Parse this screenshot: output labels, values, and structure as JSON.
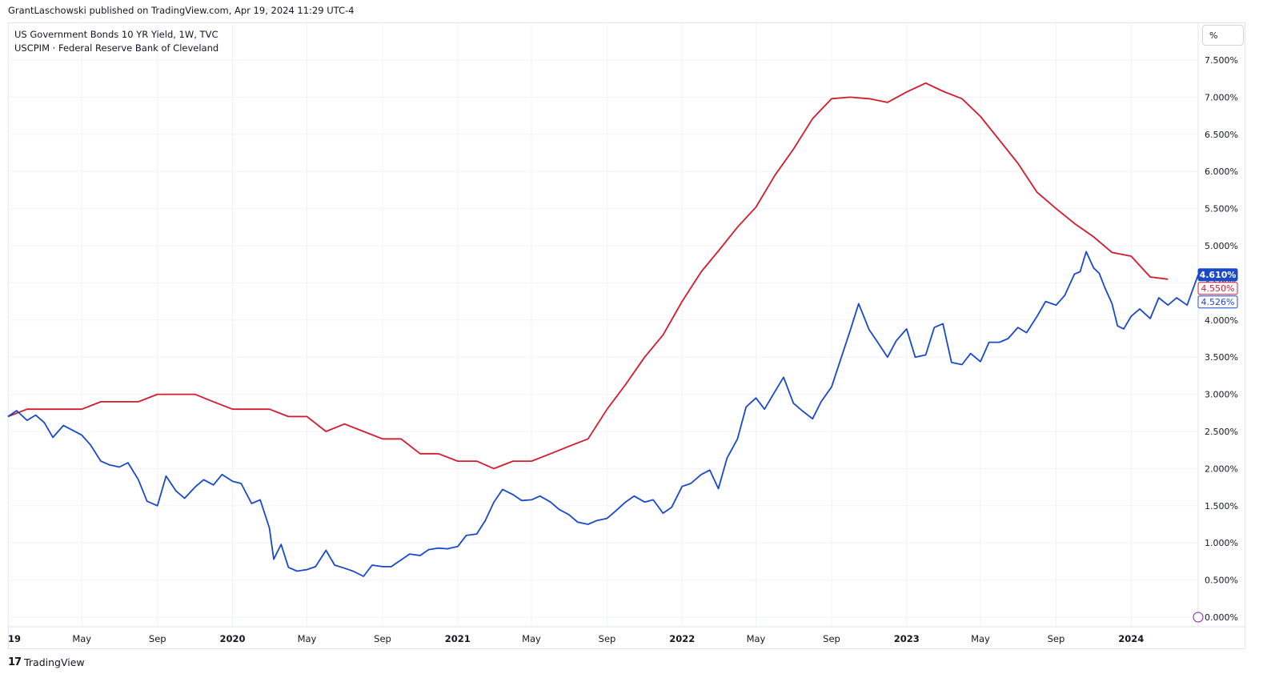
{
  "publisher": "GrantLaschowski published on TradingView.com, Apr 19, 2024 11:29 UTC-4",
  "legend": {
    "line1": "US Government Bonds 10 YR Yield, 1W, TVC",
    "line2": "USCPIM · Federal Reserve Bank of Cleveland"
  },
  "unit_button": "%",
  "brand": "TradingView",
  "colors": {
    "blue": "#1848cc",
    "red": "#d6192b",
    "grid": "#f0f3fa"
  },
  "chart_data": {
    "type": "line",
    "ylim": [
      0,
      7.5
    ],
    "xlim": [
      "2019-01-01",
      "2024-04-19"
    ],
    "y_ticks": [
      {
        "value": 7.5,
        "label": "7.500%"
      },
      {
        "value": 7.0,
        "label": "7.000%"
      },
      {
        "value": 6.5,
        "label": "6.500%"
      },
      {
        "value": 6.0,
        "label": "6.000%"
      },
      {
        "value": 5.5,
        "label": "5.500%"
      },
      {
        "value": 5.0,
        "label": "5.000%"
      },
      {
        "value": 4.5,
        "label": "4.500%"
      },
      {
        "value": 4.0,
        "label": "4.000%"
      },
      {
        "value": 3.5,
        "label": "3.500%"
      },
      {
        "value": 3.0,
        "label": "3.000%"
      },
      {
        "value": 2.5,
        "label": "2.500%"
      },
      {
        "value": 2.0,
        "label": "2.000%"
      },
      {
        "value": 1.5,
        "label": "1.500%"
      },
      {
        "value": 1.0,
        "label": "1.000%"
      },
      {
        "value": 0.5,
        "label": "0.500%"
      },
      {
        "value": 0.0,
        "label": "0.000%"
      }
    ],
    "x_ticks": [
      {
        "date": "2019-01-01",
        "label": "19",
        "major": true
      },
      {
        "date": "2019-05-01",
        "label": "May",
        "major": false
      },
      {
        "date": "2019-09-01",
        "label": "Sep",
        "major": false
      },
      {
        "date": "2020-01-01",
        "label": "2020",
        "major": true
      },
      {
        "date": "2020-05-01",
        "label": "May",
        "major": false
      },
      {
        "date": "2020-09-01",
        "label": "Sep",
        "major": false
      },
      {
        "date": "2021-01-01",
        "label": "2021",
        "major": true
      },
      {
        "date": "2021-05-01",
        "label": "May",
        "major": false
      },
      {
        "date": "2021-09-01",
        "label": "Sep",
        "major": false
      },
      {
        "date": "2022-01-01",
        "label": "2022",
        "major": true
      },
      {
        "date": "2022-05-01",
        "label": "May",
        "major": false
      },
      {
        "date": "2022-09-01",
        "label": "Sep",
        "major": false
      },
      {
        "date": "2023-01-01",
        "label": "2023",
        "major": true
      },
      {
        "date": "2023-05-01",
        "label": "May",
        "major": false
      },
      {
        "date": "2023-09-01",
        "label": "Sep",
        "major": false
      },
      {
        "date": "2024-01-01",
        "label": "2024",
        "major": true
      }
    ],
    "series": [
      {
        "color": "#d6192b",
        "last_label": "4.550%",
        "points": [
          [
            "2019-01-01",
            2.7
          ],
          [
            "2019-02-01",
            2.8
          ],
          [
            "2019-03-01",
            2.8
          ],
          [
            "2019-04-01",
            2.8
          ],
          [
            "2019-05-01",
            2.8
          ],
          [
            "2019-06-01",
            2.9
          ],
          [
            "2019-07-01",
            2.9
          ],
          [
            "2019-08-01",
            2.9
          ],
          [
            "2019-09-01",
            3.0
          ],
          [
            "2019-10-01",
            3.0
          ],
          [
            "2019-11-01",
            3.0
          ],
          [
            "2019-12-01",
            2.9
          ],
          [
            "2020-01-01",
            2.8
          ],
          [
            "2020-02-01",
            2.8
          ],
          [
            "2020-03-01",
            2.8
          ],
          [
            "2020-04-01",
            2.7
          ],
          [
            "2020-05-01",
            2.7
          ],
          [
            "2020-06-01",
            2.5
          ],
          [
            "2020-07-01",
            2.6
          ],
          [
            "2020-08-01",
            2.5
          ],
          [
            "2020-09-01",
            2.4
          ],
          [
            "2020-10-01",
            2.4
          ],
          [
            "2020-11-01",
            2.2
          ],
          [
            "2020-12-01",
            2.2
          ],
          [
            "2021-01-01",
            2.1
          ],
          [
            "2021-02-01",
            2.1
          ],
          [
            "2021-03-01",
            2.0
          ],
          [
            "2021-04-01",
            2.1
          ],
          [
            "2021-05-01",
            2.1
          ],
          [
            "2021-06-01",
            2.2
          ],
          [
            "2021-07-01",
            2.3
          ],
          [
            "2021-08-01",
            2.4
          ],
          [
            "2021-09-01",
            2.8
          ],
          [
            "2021-10-01",
            3.13
          ],
          [
            "2021-11-01",
            3.5
          ],
          [
            "2021-12-01",
            3.8
          ],
          [
            "2022-01-01",
            4.25
          ],
          [
            "2022-02-01",
            4.65
          ],
          [
            "2022-03-01",
            4.93
          ],
          [
            "2022-04-01",
            5.25
          ],
          [
            "2022-05-01",
            5.52
          ],
          [
            "2022-06-01",
            5.95
          ],
          [
            "2022-07-01",
            6.3
          ],
          [
            "2022-08-01",
            6.71
          ],
          [
            "2022-09-01",
            6.98
          ],
          [
            "2022-10-01",
            7.0
          ],
          [
            "2022-11-01",
            6.98
          ],
          [
            "2022-12-01",
            6.93
          ],
          [
            "2023-01-01",
            7.07
          ],
          [
            "2023-02-01",
            7.19
          ],
          [
            "2023-03-01",
            7.08
          ],
          [
            "2023-04-01",
            6.98
          ],
          [
            "2023-05-01",
            6.74
          ],
          [
            "2023-06-01",
            6.42
          ],
          [
            "2023-07-01",
            6.11
          ],
          [
            "2023-08-01",
            5.72
          ],
          [
            "2023-09-01",
            5.5
          ],
          [
            "2023-10-01",
            5.3
          ],
          [
            "2023-11-01",
            5.12
          ],
          [
            "2023-12-01",
            4.91
          ],
          [
            "2024-01-01",
            4.86
          ],
          [
            "2024-02-01",
            4.58
          ],
          [
            "2024-03-01",
            4.55
          ]
        ]
      },
      {
        "color": "#1848cc",
        "last_label": "4.610%",
        "prev_label": "4.526%",
        "points": [
          [
            "2019-01-01",
            2.7
          ],
          [
            "2019-01-15",
            2.78
          ],
          [
            "2019-02-01",
            2.65
          ],
          [
            "2019-02-15",
            2.72
          ],
          [
            "2019-03-01",
            2.62
          ],
          [
            "2019-03-15",
            2.42
          ],
          [
            "2019-04-01",
            2.58
          ],
          [
            "2019-04-15",
            2.52
          ],
          [
            "2019-05-01",
            2.45
          ],
          [
            "2019-05-15",
            2.32
          ],
          [
            "2019-06-01",
            2.1
          ],
          [
            "2019-06-15",
            2.05
          ],
          [
            "2019-07-01",
            2.02
          ],
          [
            "2019-07-15",
            2.08
          ],
          [
            "2019-08-01",
            1.85
          ],
          [
            "2019-08-15",
            1.56
          ],
          [
            "2019-09-01",
            1.5
          ],
          [
            "2019-09-15",
            1.9
          ],
          [
            "2019-10-01",
            1.7
          ],
          [
            "2019-10-15",
            1.6
          ],
          [
            "2019-11-01",
            1.75
          ],
          [
            "2019-11-15",
            1.85
          ],
          [
            "2019-12-01",
            1.78
          ],
          [
            "2019-12-15",
            1.92
          ],
          [
            "2020-01-01",
            1.83
          ],
          [
            "2020-01-15",
            1.8
          ],
          [
            "2020-02-01",
            1.53
          ],
          [
            "2020-02-15",
            1.58
          ],
          [
            "2020-03-01",
            1.2
          ],
          [
            "2020-03-08",
            0.78
          ],
          [
            "2020-03-20",
            0.98
          ],
          [
            "2020-04-01",
            0.67
          ],
          [
            "2020-04-15",
            0.62
          ],
          [
            "2020-05-01",
            0.64
          ],
          [
            "2020-05-15",
            0.68
          ],
          [
            "2020-06-01",
            0.9
          ],
          [
            "2020-06-15",
            0.7
          ],
          [
            "2020-07-01",
            0.66
          ],
          [
            "2020-07-15",
            0.62
          ],
          [
            "2020-08-01",
            0.55
          ],
          [
            "2020-08-15",
            0.7
          ],
          [
            "2020-09-01",
            0.68
          ],
          [
            "2020-09-15",
            0.68
          ],
          [
            "2020-10-01",
            0.77
          ],
          [
            "2020-10-15",
            0.85
          ],
          [
            "2020-11-01",
            0.83
          ],
          [
            "2020-11-15",
            0.91
          ],
          [
            "2020-12-01",
            0.93
          ],
          [
            "2020-12-15",
            0.92
          ],
          [
            "2021-01-01",
            0.95
          ],
          [
            "2021-01-15",
            1.1
          ],
          [
            "2021-02-01",
            1.12
          ],
          [
            "2021-02-15",
            1.3
          ],
          [
            "2021-03-01",
            1.55
          ],
          [
            "2021-03-15",
            1.72
          ],
          [
            "2021-04-01",
            1.65
          ],
          [
            "2021-04-15",
            1.57
          ],
          [
            "2021-05-01",
            1.58
          ],
          [
            "2021-05-15",
            1.63
          ],
          [
            "2021-06-01",
            1.55
          ],
          [
            "2021-06-15",
            1.45
          ],
          [
            "2021-07-01",
            1.38
          ],
          [
            "2021-07-15",
            1.28
          ],
          [
            "2021-08-01",
            1.25
          ],
          [
            "2021-08-15",
            1.3
          ],
          [
            "2021-09-01",
            1.33
          ],
          [
            "2021-09-15",
            1.43
          ],
          [
            "2021-10-01",
            1.55
          ],
          [
            "2021-10-15",
            1.63
          ],
          [
            "2021-11-01",
            1.55
          ],
          [
            "2021-11-15",
            1.58
          ],
          [
            "2021-12-01",
            1.4
          ],
          [
            "2021-12-15",
            1.48
          ],
          [
            "2022-01-01",
            1.76
          ],
          [
            "2022-01-15",
            1.8
          ],
          [
            "2022-02-01",
            1.92
          ],
          [
            "2022-02-15",
            1.98
          ],
          [
            "2022-03-01",
            1.73
          ],
          [
            "2022-03-15",
            2.14
          ],
          [
            "2022-04-01",
            2.4
          ],
          [
            "2022-04-15",
            2.83
          ],
          [
            "2022-05-01",
            2.95
          ],
          [
            "2022-05-15",
            2.8
          ],
          [
            "2022-06-01",
            3.04
          ],
          [
            "2022-06-15",
            3.23
          ],
          [
            "2022-07-01",
            2.88
          ],
          [
            "2022-07-15",
            2.78
          ],
          [
            "2022-08-01",
            2.67
          ],
          [
            "2022-08-15",
            2.9
          ],
          [
            "2022-09-01",
            3.1
          ],
          [
            "2022-09-15",
            3.45
          ],
          [
            "2022-10-01",
            3.85
          ],
          [
            "2022-10-15",
            4.22
          ],
          [
            "2022-11-01",
            3.87
          ],
          [
            "2022-11-15",
            3.7
          ],
          [
            "2022-12-01",
            3.5
          ],
          [
            "2022-12-15",
            3.72
          ],
          [
            "2023-01-01",
            3.88
          ],
          [
            "2023-01-15",
            3.5
          ],
          [
            "2023-02-01",
            3.53
          ],
          [
            "2023-02-15",
            3.9
          ],
          [
            "2023-03-01",
            3.95
          ],
          [
            "2023-03-15",
            3.43
          ],
          [
            "2023-04-01",
            3.4
          ],
          [
            "2023-04-15",
            3.55
          ],
          [
            "2023-05-01",
            3.44
          ],
          [
            "2023-05-15",
            3.7
          ],
          [
            "2023-06-01",
            3.7
          ],
          [
            "2023-06-15",
            3.75
          ],
          [
            "2023-07-01",
            3.9
          ],
          [
            "2023-07-15",
            3.83
          ],
          [
            "2023-08-01",
            4.05
          ],
          [
            "2023-08-15",
            4.25
          ],
          [
            "2023-09-01",
            4.2
          ],
          [
            "2023-09-15",
            4.33
          ],
          [
            "2023-10-01",
            4.62
          ],
          [
            "2023-10-10",
            4.65
          ],
          [
            "2023-10-20",
            4.92
          ],
          [
            "2023-11-01",
            4.7
          ],
          [
            "2023-11-10",
            4.63
          ],
          [
            "2023-11-20",
            4.42
          ],
          [
            "2023-12-01",
            4.22
          ],
          [
            "2023-12-10",
            3.92
          ],
          [
            "2023-12-20",
            3.88
          ],
          [
            "2024-01-01",
            4.05
          ],
          [
            "2024-01-15",
            4.15
          ],
          [
            "2024-02-01",
            4.02
          ],
          [
            "2024-02-15",
            4.3
          ],
          [
            "2024-03-01",
            4.2
          ],
          [
            "2024-03-15",
            4.3
          ],
          [
            "2024-04-01",
            4.2
          ],
          [
            "2024-04-19",
            4.61
          ]
        ]
      }
    ]
  }
}
